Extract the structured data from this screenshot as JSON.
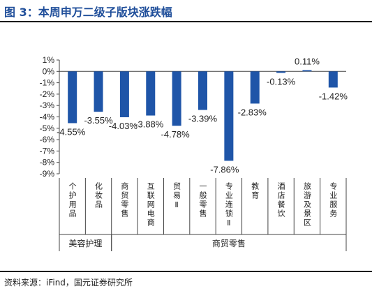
{
  "page": {
    "title": "图 3：本周申万二级子版块涨跌幅",
    "source": "资料来源：iFind，国元证券研究所"
  },
  "colors": {
    "title": "#1f4e9a",
    "bar": "#1f55a8",
    "axis": "#444444"
  },
  "chart_data": {
    "type": "bar",
    "title": "",
    "xlabel": "",
    "ylabel": "",
    "ylim": [
      -9,
      1
    ],
    "y_ticks": [
      "1%",
      "0%",
      "-1%",
      "-2%",
      "-3%",
      "-4%",
      "-5%",
      "-6%",
      "-7%",
      "-8%",
      "-9%"
    ],
    "grid": false,
    "legend": "none",
    "categories": [
      "个护用品",
      "化妆品",
      "商贸零售",
      "互联网电商",
      "贸易Ⅱ",
      "一般零售",
      "专业连锁Ⅱ",
      "教育",
      "酒店餐饮",
      "旅游及景区",
      "专业服务"
    ],
    "values": [
      -4.55,
      -3.55,
      -4.03,
      -3.88,
      -4.78,
      -3.39,
      -7.86,
      -2.83,
      -0.13,
      0.11,
      -1.42
    ],
    "value_labels": [
      "-4.55%",
      "-3.55%",
      "-4.03%",
      "-3.88%",
      "-4.78%",
      "-3.39%",
      "-7.86%",
      "-2.83%",
      "-0.13%",
      "0.11%",
      "-1.42%"
    ],
    "groups": [
      {
        "name": "美容护理",
        "start": 0,
        "end": 1
      },
      {
        "name": "商贸零售",
        "start": 2,
        "end": 10
      }
    ]
  }
}
